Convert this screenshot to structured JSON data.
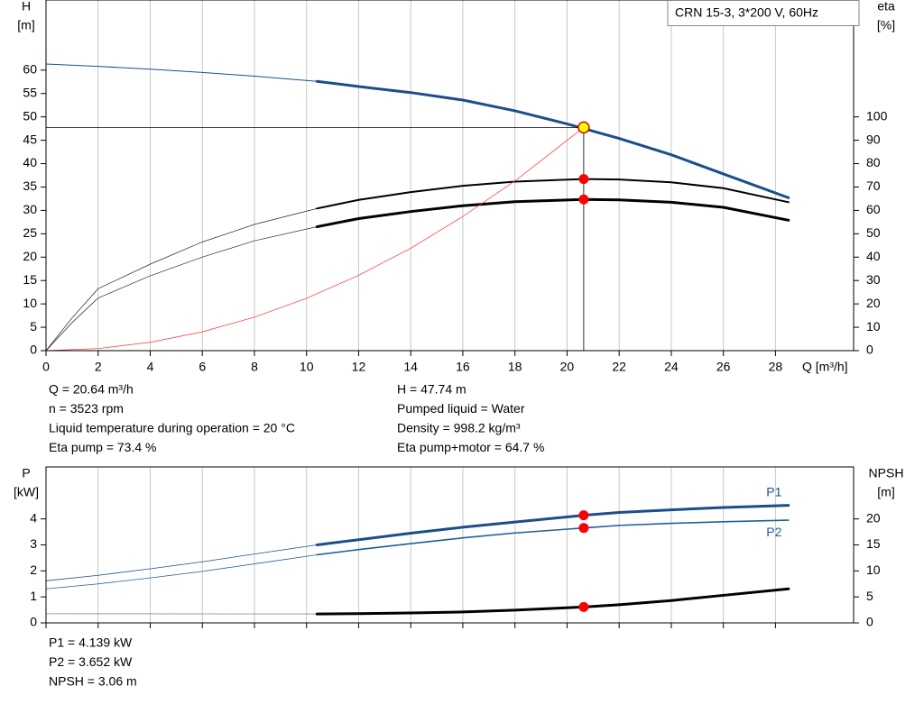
{
  "chart_data": [
    {
      "type": "line",
      "title": "CRN 15-3, 3*200 V, 60Hz",
      "ylabel": [
        "H",
        "[m]"
      ],
      "y2label": [
        "eta",
        "[%]"
      ],
      "xlabel": "Q [m³/h]",
      "xlim": [
        0,
        31
      ],
      "xticks": [
        0,
        2,
        4,
        6,
        8,
        10,
        12,
        14,
        16,
        18,
        20,
        22,
        24,
        26,
        28
      ],
      "xtick_labels": true,
      "ylim": [
        0,
        75
      ],
      "yticks": [
        0,
        5,
        10,
        15,
        20,
        25,
        30,
        35,
        40,
        45,
        50,
        55,
        60
      ],
      "y2lim": [
        0,
        150
      ],
      "y2ticks": [
        0,
        10,
        20,
        30,
        40,
        50,
        60,
        70,
        80,
        90,
        100
      ],
      "grid": "x",
      "series": [
        {
          "color": "#1a4f8a",
          "width": 1,
          "axis": "y",
          "x": [
            0,
            2,
            4,
            6,
            8,
            10.4
          ],
          "values": [
            61.3,
            60.8,
            60.2,
            59.5,
            58.7,
            57.6
          ]
        },
        {
          "color": "#1a4f8a",
          "width": 3,
          "axis": "y",
          "x": [
            10.4,
            12,
            14,
            16,
            18,
            20,
            22,
            24,
            26,
            28.5
          ],
          "values": [
            57.6,
            56.5,
            55.2,
            53.6,
            51.3,
            48.5,
            45.4,
            41.9,
            37.8,
            32.7
          ]
        },
        {
          "color": "#000000",
          "width": 0.6,
          "axis": "y2",
          "x": [
            0,
            1,
            2,
            4,
            6,
            8,
            10.4
          ],
          "values": [
            0,
            14,
            26.5,
            37,
            46.5,
            54,
            60.8
          ]
        },
        {
          "color": "#000000",
          "width": 2,
          "axis": "y2",
          "x": [
            10.4,
            12,
            14,
            16,
            18,
            20.64,
            22,
            24,
            26,
            28.5
          ],
          "values": [
            60.8,
            64.5,
            67.8,
            70.5,
            72.3,
            73.4,
            73.2,
            72,
            69.5,
            63.5
          ]
        },
        {
          "color": "#000000",
          "width": 0.6,
          "axis": "y2",
          "x": [
            0,
            1,
            2,
            4,
            6,
            8,
            10.4
          ],
          "values": [
            0,
            12,
            22.5,
            32,
            40,
            47,
            53
          ]
        },
        {
          "color": "#000000",
          "width": 3,
          "axis": "y2",
          "x": [
            10.4,
            12,
            14,
            16,
            18,
            20.64,
            22,
            24,
            26,
            28.5
          ],
          "values": [
            53,
            56.5,
            59.5,
            62,
            63.7,
            64.7,
            64.5,
            63.5,
            61.3,
            55.8
          ]
        },
        {
          "color": "#ff3030",
          "width": 0.7,
          "axis": "y",
          "x": [
            0,
            2,
            4,
            6,
            8,
            10,
            12,
            14,
            16,
            18,
            20.64
          ],
          "values": [
            0,
            0.45,
            1.79,
            4.03,
            7.17,
            11.2,
            16.1,
            21.9,
            28.7,
            36.3,
            47.74
          ]
        }
      ],
      "points": [
        {
          "x": 20.64,
          "y": 73.4,
          "axis": "y2",
          "color": "#ff0000",
          "guide": false
        },
        {
          "x": 20.64,
          "y": 64.7,
          "axis": "y2",
          "color": "#ff0000",
          "guide": false
        },
        {
          "x": 20.64,
          "y": 47.74,
          "axis": "y",
          "color": "#ffff00",
          "guide": true
        }
      ],
      "notes": [
        [
          "Q = 20.64 m³/h",
          "n = 3523 rpm",
          "Liquid temperature during operation = 20 °C",
          "Eta pump = 73.4 %"
        ],
        [
          "H = 47.74 m",
          "Pumped liquid = Water",
          "Density = 998.2 kg/m³",
          "Eta pump+motor = 64.7 %"
        ]
      ]
    },
    {
      "type": "line",
      "ylabel": [
        "P",
        "[kW]"
      ],
      "y2label": [
        "NPSH",
        "[m]"
      ],
      "xlim": [
        0,
        31
      ],
      "xticks": [
        0,
        2,
        4,
        6,
        8,
        10,
        12,
        14,
        16,
        18,
        20,
        22,
        24,
        26,
        28
      ],
      "xtick_labels": false,
      "ylim": [
        0,
        6
      ],
      "yticks": [
        0,
        1,
        2,
        3,
        4
      ],
      "y2lim": [
        0,
        30
      ],
      "y2ticks": [
        0,
        5,
        10,
        15,
        20
      ],
      "grid": "x",
      "series": [
        {
          "color": "#1a4f8a",
          "width": 0.8,
          "axis": "y",
          "x": [
            0,
            2,
            4,
            6,
            8,
            10.4
          ],
          "values": [
            1.62,
            1.83,
            2.08,
            2.35,
            2.65,
            3.0
          ]
        },
        {
          "name": "P1",
          "label_position": "above",
          "color": "#1a4f8a",
          "width": 3,
          "axis": "y",
          "x": [
            10.4,
            12,
            14,
            16,
            18,
            20.64,
            22,
            24,
            26,
            28.5
          ],
          "values": [
            3.0,
            3.2,
            3.45,
            3.68,
            3.88,
            4.139,
            4.25,
            4.35,
            4.44,
            4.52
          ]
        },
        {
          "color": "#1f5f9f",
          "width": 0.8,
          "axis": "y",
          "x": [
            0,
            2,
            4,
            6,
            8,
            10.4
          ],
          "values": [
            1.31,
            1.5,
            1.73,
            1.98,
            2.27,
            2.62
          ]
        },
        {
          "name": "P2",
          "label_position": "below",
          "color": "#1f5f9f",
          "width": 1.6,
          "axis": "y",
          "x": [
            10.4,
            12,
            14,
            16,
            18,
            20.64,
            22,
            24,
            26,
            28.5
          ],
          "values": [
            2.62,
            2.82,
            3.05,
            3.27,
            3.46,
            3.652,
            3.75,
            3.83,
            3.89,
            3.95
          ]
        },
        {
          "color": "#888888",
          "width": 0.8,
          "axis": "y2",
          "x": [
            0,
            10.4
          ],
          "values": [
            1.75,
            1.72
          ]
        },
        {
          "color": "#000000",
          "width": 3,
          "axis": "y2",
          "x": [
            10.4,
            12,
            14,
            16,
            18,
            20.64,
            22,
            24,
            26,
            28.5
          ],
          "values": [
            1.72,
            1.78,
            1.9,
            2.1,
            2.45,
            3.06,
            3.5,
            4.3,
            5.3,
            6.55
          ]
        }
      ],
      "points": [
        {
          "x": 20.64,
          "y": 4.139,
          "axis": "y",
          "color": "#ff0000",
          "guide": false
        },
        {
          "x": 20.64,
          "y": 3.652,
          "axis": "y",
          "color": "#ff0000",
          "guide": false
        },
        {
          "x": 20.64,
          "y": 3.06,
          "axis": "y2",
          "color": "#ff0000",
          "guide": false
        }
      ],
      "notes": [
        [
          "P1 = 4.139 kW",
          "P2 = 3.652 kW",
          "NPSH = 3.06 m"
        ]
      ]
    }
  ]
}
